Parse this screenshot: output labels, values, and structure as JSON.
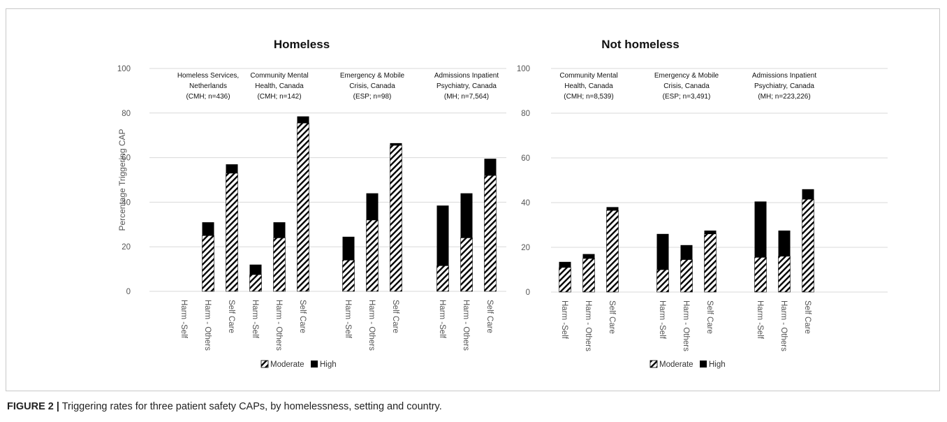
{
  "caption": {
    "label": "FIGURE 2 |",
    "text": " Triggering rates for three patient safety CAPs, by homelessness, setting and country."
  },
  "colors": {
    "high": "#000000",
    "moderate_hatch": "#000000",
    "grid": "#d9d9d9"
  },
  "chart_data": [
    {
      "type": "bar",
      "stacked": true,
      "title": "Homeless",
      "ylabel": "Percentage Triggering CAP",
      "ylim": [
        0,
        100
      ],
      "yticks": [
        "0",
        "20",
        "40",
        "60",
        "80",
        "100"
      ],
      "grid": true,
      "legend": [
        "Moderate",
        "High"
      ],
      "legend_position": "bottom",
      "groups": [
        {
          "label_lines": [
            "Homeless Services,",
            "Netherlands",
            "(CMH; n=436)"
          ],
          "categories": [
            "Harm -Self",
            "Harm - Others",
            "Self Care"
          ],
          "moderate": [
            0,
            25,
            53
          ],
          "high": [
            0,
            6,
            4
          ]
        },
        {
          "label_lines": [
            "Community Mental",
            "Health, Canada",
            "(CMH; n=142)"
          ],
          "categories": [
            "Harm -Self",
            "Harm - Others",
            "Self Care"
          ],
          "moderate": [
            7.5,
            24,
            75.5
          ],
          "high": [
            4.5,
            7,
            3
          ]
        },
        {
          "label_lines": [
            "Emergency & Mobile",
            "Crisis, Canada",
            "(ESP; n=98)"
          ],
          "categories": [
            "Harm -Self",
            "Harm - Others",
            "Self Care"
          ],
          "moderate": [
            14,
            32,
            65.5
          ],
          "high": [
            10.5,
            12,
            1
          ]
        },
        {
          "label_lines": [
            "Admissions Inpatient",
            "Psychiatry, Canada",
            "(MH; n=7,564)"
          ],
          "categories": [
            "Harm -Self",
            "Harm - Others",
            "Self Care"
          ],
          "moderate": [
            11.5,
            24,
            52
          ],
          "high": [
            27,
            20,
            7.5
          ]
        }
      ]
    },
    {
      "type": "bar",
      "stacked": true,
      "title": "Not homeless",
      "ylim": [
        0,
        100
      ],
      "yticks": [
        "0",
        "20",
        "40",
        "60",
        "80",
        "100"
      ],
      "grid": true,
      "legend": [
        "Moderate",
        "High"
      ],
      "legend_position": "bottom",
      "groups": [
        {
          "label_lines": [
            "Community Mental",
            "Health, Canada",
            "(CMH; n=8,539)"
          ],
          "categories": [
            "Harm -Self",
            "Harm - Others",
            "Self Care"
          ],
          "moderate": [
            11,
            15,
            36.5
          ],
          "high": [
            2.5,
            2,
            1.5
          ]
        },
        {
          "label_lines": [
            "Emergency & Mobile",
            "Crisis, Canada",
            "(ESP; n=3,491)"
          ],
          "categories": [
            "Harm -Self",
            "Harm - Others",
            "Self Care"
          ],
          "moderate": [
            10,
            14.5,
            26
          ],
          "high": [
            16,
            6.5,
            1.5
          ]
        },
        {
          "label_lines": [
            "Admissions Inpatient",
            "Psychiatry, Canada",
            "(MH; n=223,226)"
          ],
          "categories": [
            "Harm -Self",
            "Harm - Others",
            "Self Care"
          ],
          "moderate": [
            15.5,
            16,
            41.5
          ],
          "high": [
            25,
            11.5,
            4.5
          ]
        }
      ]
    }
  ]
}
